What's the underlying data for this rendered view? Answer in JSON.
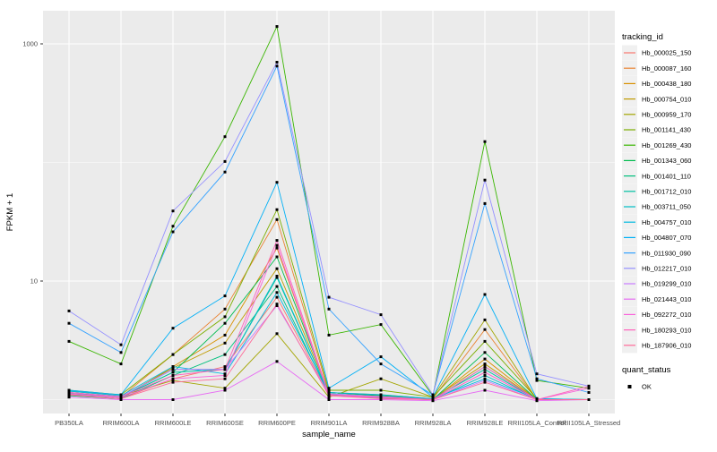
{
  "figure": {
    "background": "#ffffff",
    "panel_background": "#ebebeb",
    "grid_color": "#ffffff",
    "tick_color": "#333333",
    "point_color": "#000000"
  },
  "chart_data": {
    "type": "line",
    "title": "",
    "xlabel": "sample_name",
    "ylabel": "FPKM + 1",
    "y_scale": "log10",
    "ylim": [
      0.9,
      1500
    ],
    "grid": true,
    "y_ticks": [
      {
        "label": "1000",
        "value": 1000
      },
      {
        "label": "10",
        "value": 10
      }
    ],
    "y_minor": [
      100,
      1
    ],
    "categories": [
      "PB350LA",
      "RRIM600LA",
      "RRIM600LE",
      "RRIM600SE",
      "RRIM600PE",
      "RRIM901LA",
      "RRIM928BA",
      "RRIM928LA",
      "RRIM928LE",
      "RRII105LA_Control",
      "RRII105LA_Stressed"
    ],
    "legend": {
      "title": "tracking_id",
      "position": "right"
    },
    "quant_legend": {
      "title": "quant_status",
      "items": [
        {
          "label": "OK",
          "marker": "black-square"
        }
      ]
    },
    "series": [
      {
        "name": "Hb_000025_150",
        "color": "#F8766D",
        "values": [
          1.1,
          1.02,
          1.5,
          1.9,
          7.3,
          1.1,
          1.05,
          1.0,
          1.7,
          1.0,
          1.0
        ]
      },
      {
        "name": "Hb_000087_160",
        "color": "#EA8331",
        "values": [
          1.15,
          1.05,
          2.4,
          5.8,
          33,
          1.15,
          1.1,
          1.02,
          3.9,
          1.0,
          1.0
        ]
      },
      {
        "name": "Hb_000438_180",
        "color": "#D89000",
        "values": [
          1.08,
          1.02,
          1.9,
          3.5,
          19,
          1.1,
          1.05,
          1.0,
          2.2,
          1.0,
          1.0
        ]
      },
      {
        "name": "Hb_000754_010",
        "color": "#C09B00",
        "values": [
          1.12,
          1.05,
          1.85,
          3.0,
          12.7,
          1.15,
          1.08,
          1.02,
          2.0,
          1.0,
          1.0
        ]
      },
      {
        "name": "Hb_000959_170",
        "color": "#A3A500",
        "values": [
          1.18,
          1.08,
          1.45,
          1.25,
          3.6,
          1.05,
          1.5,
          1.05,
          4.7,
          1.0,
          1.0
        ]
      },
      {
        "name": "Hb_001141_430",
        "color": "#7CAE00",
        "values": [
          1.2,
          1.1,
          2.4,
          5.0,
          40,
          1.2,
          1.2,
          1.05,
          3.1,
          1.02,
          1.0
        ]
      },
      {
        "name": "Hb_001269_430",
        "color": "#39B600",
        "values": [
          3.1,
          2.0,
          29,
          165,
          1400,
          3.5,
          4.3,
          1.08,
          150,
          1.45,
          1.25
        ]
      },
      {
        "name": "Hb_001343_060",
        "color": "#00BB4E",
        "values": [
          1.12,
          1.05,
          1.7,
          4.4,
          16,
          1.15,
          1.08,
          1.0,
          2.5,
          1.0,
          1.0
        ]
      },
      {
        "name": "Hb_001401_110",
        "color": "#00BF7D",
        "values": [
          1.08,
          1.02,
          1.6,
          2.4,
          9.0,
          1.1,
          1.03,
          1.0,
          1.9,
          1.0,
          1.0
        ]
      },
      {
        "name": "Hb_001712_010",
        "color": "#00C1A3",
        "values": [
          1.12,
          1.05,
          1.7,
          1.8,
          10.7,
          1.12,
          1.06,
          1.02,
          1.8,
          1.0,
          1.0
        ]
      },
      {
        "name": "Hb_003711_050",
        "color": "#00BFC4",
        "values": [
          1.15,
          1.05,
          1.8,
          1.8,
          11,
          1.12,
          1.06,
          1.0,
          1.6,
          1.0,
          1.0
        ]
      },
      {
        "name": "Hb_004757_010",
        "color": "#00BAE0",
        "values": [
          1.18,
          1.08,
          1.9,
          1.65,
          8.0,
          1.15,
          1.1,
          1.02,
          1.5,
          1.02,
          1.0
        ]
      },
      {
        "name": "Hb_004807_070",
        "color": "#00B0F6",
        "values": [
          1.2,
          1.1,
          4.0,
          7.5,
          68,
          1.25,
          2.3,
          1.05,
          7.7,
          1.02,
          1.0
        ]
      },
      {
        "name": "Hb_011930_090",
        "color": "#35A2FF",
        "values": [
          4.4,
          2.5,
          26,
          83,
          650,
          5.8,
          2.0,
          1.1,
          45,
          1.5,
          1.15
        ]
      },
      {
        "name": "Hb_012217_010",
        "color": "#9590FF",
        "values": [
          5.6,
          2.9,
          39,
          102,
          700,
          7.3,
          5.2,
          1.1,
          71,
          1.65,
          1.3
        ]
      },
      {
        "name": "Hb_019299_010",
        "color": "#C77CFF",
        "values": [
          1.15,
          1.06,
          1.8,
          1.8,
          6.2,
          1.12,
          1.06,
          1.0,
          1.45,
          1.0,
          1.0
        ]
      },
      {
        "name": "Hb_021443_010",
        "color": "#E76BF3",
        "values": [
          1.05,
          1.0,
          1.0,
          1.2,
          2.1,
          1.0,
          1.0,
          0.98,
          1.2,
          0.98,
          1.0
        ]
      },
      {
        "name": "Hb_092272_010",
        "color": "#FA62DB",
        "values": [
          1.12,
          1.04,
          1.5,
          1.6,
          20,
          1.08,
          1.04,
          1.0,
          1.7,
          1.0,
          1.25
        ]
      },
      {
        "name": "Hb_180293_010",
        "color": "#FF62BC",
        "values": [
          1.15,
          1.06,
          1.6,
          1.8,
          22,
          1.1,
          1.05,
          1.0,
          1.9,
          1.0,
          1.3
        ]
      },
      {
        "name": "Hb_187906_010",
        "color": "#FF6A98",
        "values": [
          1.1,
          1.02,
          1.4,
          1.5,
          6.4,
          1.08,
          1.02,
          1.0,
          1.4,
          1.0,
          1.0
        ]
      }
    ]
  }
}
